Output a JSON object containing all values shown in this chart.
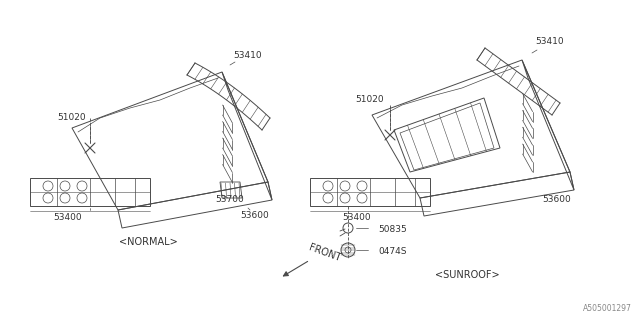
{
  "bg_color": "#ffffff",
  "line_color": "#4a4a4a",
  "text_color": "#333333",
  "fig_width": 6.4,
  "fig_height": 3.2,
  "dpi": 100,
  "watermark": "A505001297",
  "caption_left": "<NORMAL>",
  "caption_right": "<SUNROOF>",
  "front_label": "FRONT"
}
